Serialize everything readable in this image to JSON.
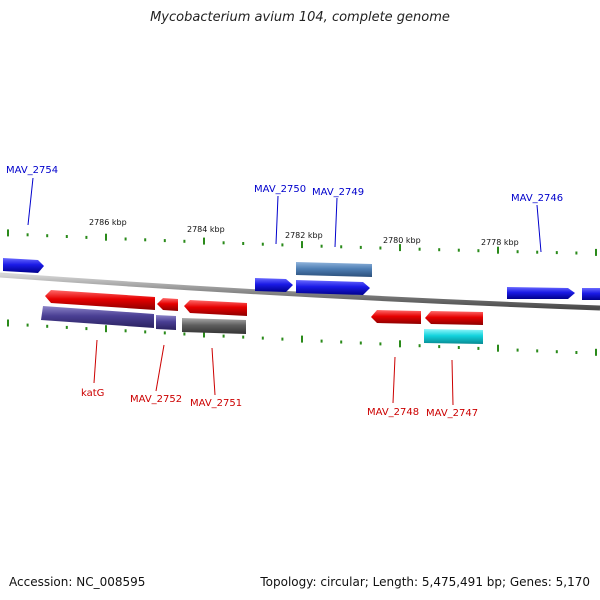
{
  "title": "Mycobacterium avium 104, complete genome",
  "footer": {
    "accession": "Accession: NC_008595",
    "summary": "Topology: circular; Length: 5,475,491 bp; Genes: 5,170"
  },
  "colors": {
    "forward_cds": "#1a1ae6",
    "reverse_cds": "#e60000",
    "steelblue": "#4f7fb4",
    "slateblue": "#4a3f94",
    "gray": "#5f5f5f",
    "cyan": "#12d3dd",
    "backbone": "#8a8a8a",
    "tick": "#2a8a1a",
    "label_blue": "#0000cc",
    "label_red": "#cc0000"
  },
  "scale_labels": [
    "2786 kbp",
    "2784 kbp",
    "2782 kbp",
    "2780 kbp",
    "2778 kbp"
  ],
  "gene_labels": [
    "MAV_2754",
    "MAV_2750",
    "MAV_2749",
    "MAV_2746",
    "katG",
    "MAV_2752",
    "MAV_2751",
    "MAV_2748",
    "MAV_2747"
  ]
}
